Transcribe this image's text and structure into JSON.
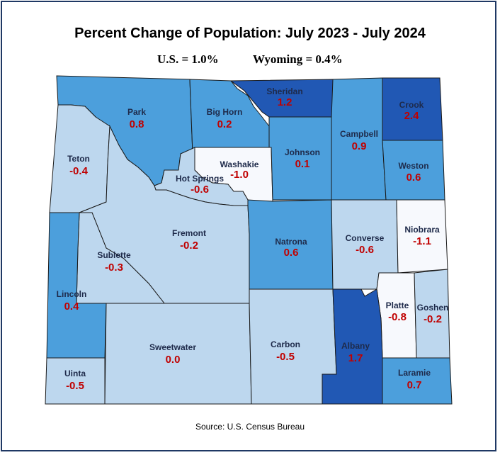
{
  "title": "Percent Change of Population: July 2023 - July 2024",
  "us_label": "U.S. = 1.0%",
  "wy_label": "Wyoming = 0.4%",
  "source": "Source: U.S. Census Bureau",
  "colors": {
    "very_light": "#f7f9fd",
    "light": "#bdd7ee",
    "medium": "#4c9fdc",
    "dark": "#2158b4",
    "value_text": "#c00000",
    "name_text": "#1e2a4a",
    "frame": "#1f3864"
  },
  "counties": [
    {
      "key": "park",
      "name": "Park",
      "value": "0.8",
      "shade": "medium"
    },
    {
      "key": "big_horn",
      "name": "Big Horn",
      "value": "0.2",
      "shade": "medium"
    },
    {
      "key": "sheridan",
      "name": "Sheridan",
      "value": "1.2",
      "shade": "dark"
    },
    {
      "key": "crook",
      "name": "Crook",
      "value": "2.4",
      "shade": "dark"
    },
    {
      "key": "teton",
      "name": "Teton",
      "value": "-0.4",
      "shade": "light"
    },
    {
      "key": "washakie",
      "name": "Washakie",
      "value": "-1.0",
      "shade": "very_light"
    },
    {
      "key": "johnson",
      "name": "Johnson",
      "value": "0.1",
      "shade": "medium"
    },
    {
      "key": "campbell",
      "name": "Campbell",
      "value": "0.9",
      "shade": "medium"
    },
    {
      "key": "weston",
      "name": "Weston",
      "value": "0.6",
      "shade": "medium"
    },
    {
      "key": "hot_springs",
      "name": "Hot Springs",
      "value": "-0.6",
      "shade": "light"
    },
    {
      "key": "fremont",
      "name": "Fremont",
      "value": "-0.2",
      "shade": "light"
    },
    {
      "key": "natrona",
      "name": "Natrona",
      "value": "0.6",
      "shade": "medium"
    },
    {
      "key": "converse",
      "name": "Converse",
      "value": "-0.6",
      "shade": "light"
    },
    {
      "key": "niobrara",
      "name": "Niobrara",
      "value": "-1.1",
      "shade": "very_light"
    },
    {
      "key": "sublette",
      "name": "Sublette",
      "value": "-0.3",
      "shade": "light"
    },
    {
      "key": "lincoln",
      "name": "Lincoln",
      "value": "0.4",
      "shade": "medium"
    },
    {
      "key": "platte",
      "name": "Platte",
      "value": "-0.8",
      "shade": "very_light"
    },
    {
      "key": "goshen",
      "name": "Goshen",
      "value": "-0.2",
      "shade": "light"
    },
    {
      "key": "sweetwater",
      "name": "Sweetwater",
      "value": "0.0",
      "shade": "light"
    },
    {
      "key": "carbon",
      "name": "Carbon",
      "value": "-0.5",
      "shade": "light"
    },
    {
      "key": "albany",
      "name": "Albany",
      "value": "1.7",
      "shade": "dark"
    },
    {
      "key": "laramie",
      "name": "Laramie",
      "value": "0.7",
      "shade": "medium"
    },
    {
      "key": "uinta",
      "name": "Uinta",
      "value": "-0.5",
      "shade": "light"
    }
  ]
}
